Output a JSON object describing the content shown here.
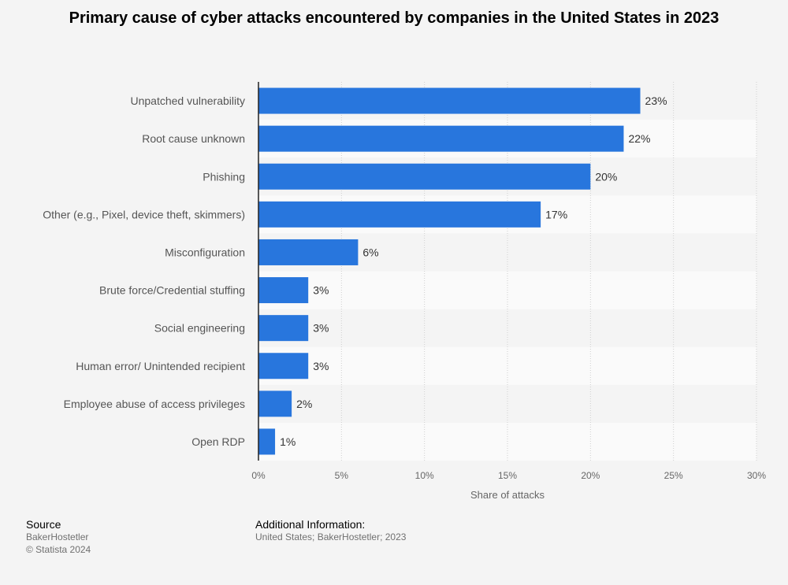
{
  "chart_data": {
    "type": "bar",
    "orientation": "horizontal",
    "title": "Primary cause of cyber attacks encountered by companies in the United States in 2023",
    "xlabel": "Share of attacks",
    "ylabel": "",
    "xlim": [
      0,
      30
    ],
    "ticks": [
      "0%",
      "5%",
      "10%",
      "15%",
      "20%",
      "25%",
      "30%"
    ],
    "tick_values": [
      0,
      5,
      10,
      15,
      20,
      25,
      30
    ],
    "categories": [
      "Unpatched vulnerability",
      "Root cause unknown",
      "Phishing",
      "Other (e.g., Pixel, device theft, skimmers)",
      "Misconfiguration",
      "Brute force/Credential stuffing",
      "Social engineering",
      "Human error/ Unintended recipient",
      "Employee abuse of access privileges",
      "Open RDP"
    ],
    "values": [
      23,
      22,
      20,
      17,
      6,
      3,
      3,
      3,
      2,
      1
    ],
    "value_labels": [
      "23%",
      "22%",
      "20%",
      "17%",
      "6%",
      "3%",
      "3%",
      "3%",
      "2%",
      "1%"
    ],
    "bar_color": "#2876dd",
    "grid": true
  },
  "footer": {
    "source_heading": "Source",
    "source_name": "BakerHostetler",
    "copyright": "© Statista 2024",
    "info_heading": "Additional Information:",
    "info_text": "United States; BakerHostetler; 2023"
  }
}
